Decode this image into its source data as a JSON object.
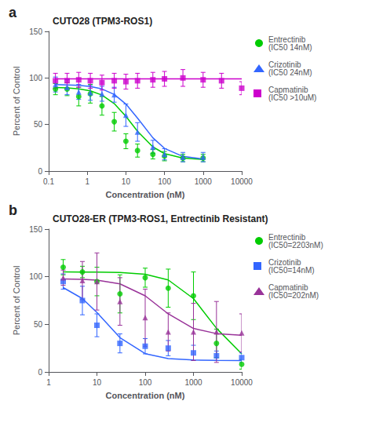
{
  "chart_data": [
    {
      "type": "scatter",
      "title": "CUTO28 (TPM3-ROS1)",
      "annotations": [
        "a"
      ],
      "xlabel": "Concentration (nM)",
      "ylabel": "Percent of Control",
      "log": "x",
      "grid": false,
      "legend": "right",
      "xlim": [
        0.1,
        10000
      ],
      "xticks": [
        0.1,
        1,
        10,
        100,
        1000,
        10000
      ],
      "ylim": [
        0,
        150
      ],
      "yticks": [
        0,
        50,
        100,
        150
      ],
      "series": [
        {
          "name": "Entrectinib\n(IC50 14nM)",
          "color": "#00cc00",
          "marker": "circle",
          "x": [
            0.15,
            0.3,
            0.6,
            1.2,
            2.4,
            5,
            10,
            20,
            50,
            100,
            300,
            1000
          ],
          "values": [
            88,
            88,
            80,
            83,
            70,
            53,
            32,
            22,
            18,
            16,
            14,
            14
          ],
          "yerr": [
            6,
            7,
            10,
            10,
            10,
            10,
            8,
            7,
            5,
            5,
            4,
            4
          ],
          "fit": [
            89.66,
            89.23,
            88.26,
            86.11,
            81.61,
            72.43,
            58.77,
            42.78,
            25.91,
            18.73,
            13.92,
            12.46
          ]
        },
        {
          "name": "Crizotinib\n(IC50 24nM)",
          "color": "#3366ff",
          "marker": "triangle",
          "x": [
            0.15,
            0.3,
            0.6,
            1.2,
            2.4,
            5,
            10,
            20,
            50,
            100,
            300,
            1000
          ],
          "values": [
            93,
            90,
            85,
            84,
            83,
            82,
            60,
            42,
            26,
            18,
            15,
            15
          ],
          "yerr": [
            8,
            8,
            8,
            8,
            8,
            8,
            12,
            10,
            7,
            6,
            5,
            5
          ],
          "fit": [
            92.82,
            92.58,
            92.04,
            90.83,
            88.19,
            82.3,
            72.01,
            56.91,
            35.73,
            24.38,
            15.73,
            12.91
          ]
        },
        {
          "name": "Capmatinib\n(IC50 >10uM)",
          "color": "#cc00cc",
          "marker": "square",
          "x": [
            0.15,
            0.3,
            0.6,
            1.2,
            2.4,
            5,
            10,
            20,
            50,
            100,
            300,
            1000,
            3000,
            10000
          ],
          "values": [
            97,
            97,
            98,
            97,
            95,
            97,
            96,
            97,
            98,
            99,
            100,
            98,
            97,
            89
          ],
          "yerr": [
            8,
            8,
            8,
            8,
            8,
            8,
            8,
            8,
            8,
            8,
            9,
            8,
            8,
            7
          ],
          "fit": [
            99,
            99,
            99,
            99,
            99,
            99,
            99,
            99,
            99,
            99,
            99,
            99,
            99,
            99
          ]
        }
      ]
    },
    {
      "type": "scatter",
      "title": "CUTO28-ER (TPM3-ROS1, Entrectinib Resistant)",
      "annotations": [
        "b"
      ],
      "xlabel": "Concentration (nM)",
      "ylabel": "Percent of Control",
      "log": "x",
      "grid": false,
      "legend": "right",
      "xlim": [
        1,
        10000
      ],
      "xticks": [
        1,
        10,
        100,
        1000,
        10000
      ],
      "ylim": [
        0,
        150
      ],
      "yticks": [
        0,
        50,
        100,
        150
      ],
      "series": [
        {
          "name": "Entrectinib\n(IC50=2203nM)",
          "color": "#00cc00",
          "marker": "circle",
          "x": [
            2,
            5,
            10,
            30,
            100,
            300,
            1000,
            3000,
            10000
          ],
          "values": [
            110,
            105,
            95,
            82,
            99,
            88,
            80,
            30,
            8
          ],
          "yerr": [
            8,
            6,
            15,
            20,
            10,
            20,
            25,
            15,
            5
          ],
          "fit": [
            104.98,
            104.93,
            104.85,
            104.43,
            102.61,
            96.63,
            77.07,
            45.84,
            19.0
          ]
        },
        {
          "name": "Crizotinib\n(IC50=14nM)",
          "color": "#3366ff",
          "marker": "square",
          "x": [
            2,
            5,
            10,
            30,
            100,
            300,
            1000,
            3000,
            10000
          ],
          "values": [
            95,
            75,
            49,
            30,
            27,
            25,
            20,
            17,
            15
          ],
          "yerr": [
            8,
            15,
            12,
            10,
            8,
            8,
            8,
            5,
            5
          ],
          "fit": [
            88.59,
            77.08,
            62.37,
            36.03,
            19.25,
            14.07,
            12.5,
            12.13,
            12.03
          ]
        },
        {
          "name": "Capmatinib\n(IC50=202nM)",
          "color": "#993399",
          "marker": "triangle",
          "x": [
            2,
            5,
            10,
            30,
            100,
            300,
            1000,
            3000,
            10000
          ],
          "values": [
            99,
            96,
            95,
            74,
            57,
            42,
            42,
            42,
            41
          ],
          "yerr": [
            8,
            20,
            30,
            25,
            30,
            20,
            30,
            32,
            20
          ],
          "fit": [
            97.76,
            97.3,
            96.41,
            92.48,
            79.95,
            61.01,
            45.68,
            40.27,
            38.55
          ]
        }
      ]
    }
  ]
}
